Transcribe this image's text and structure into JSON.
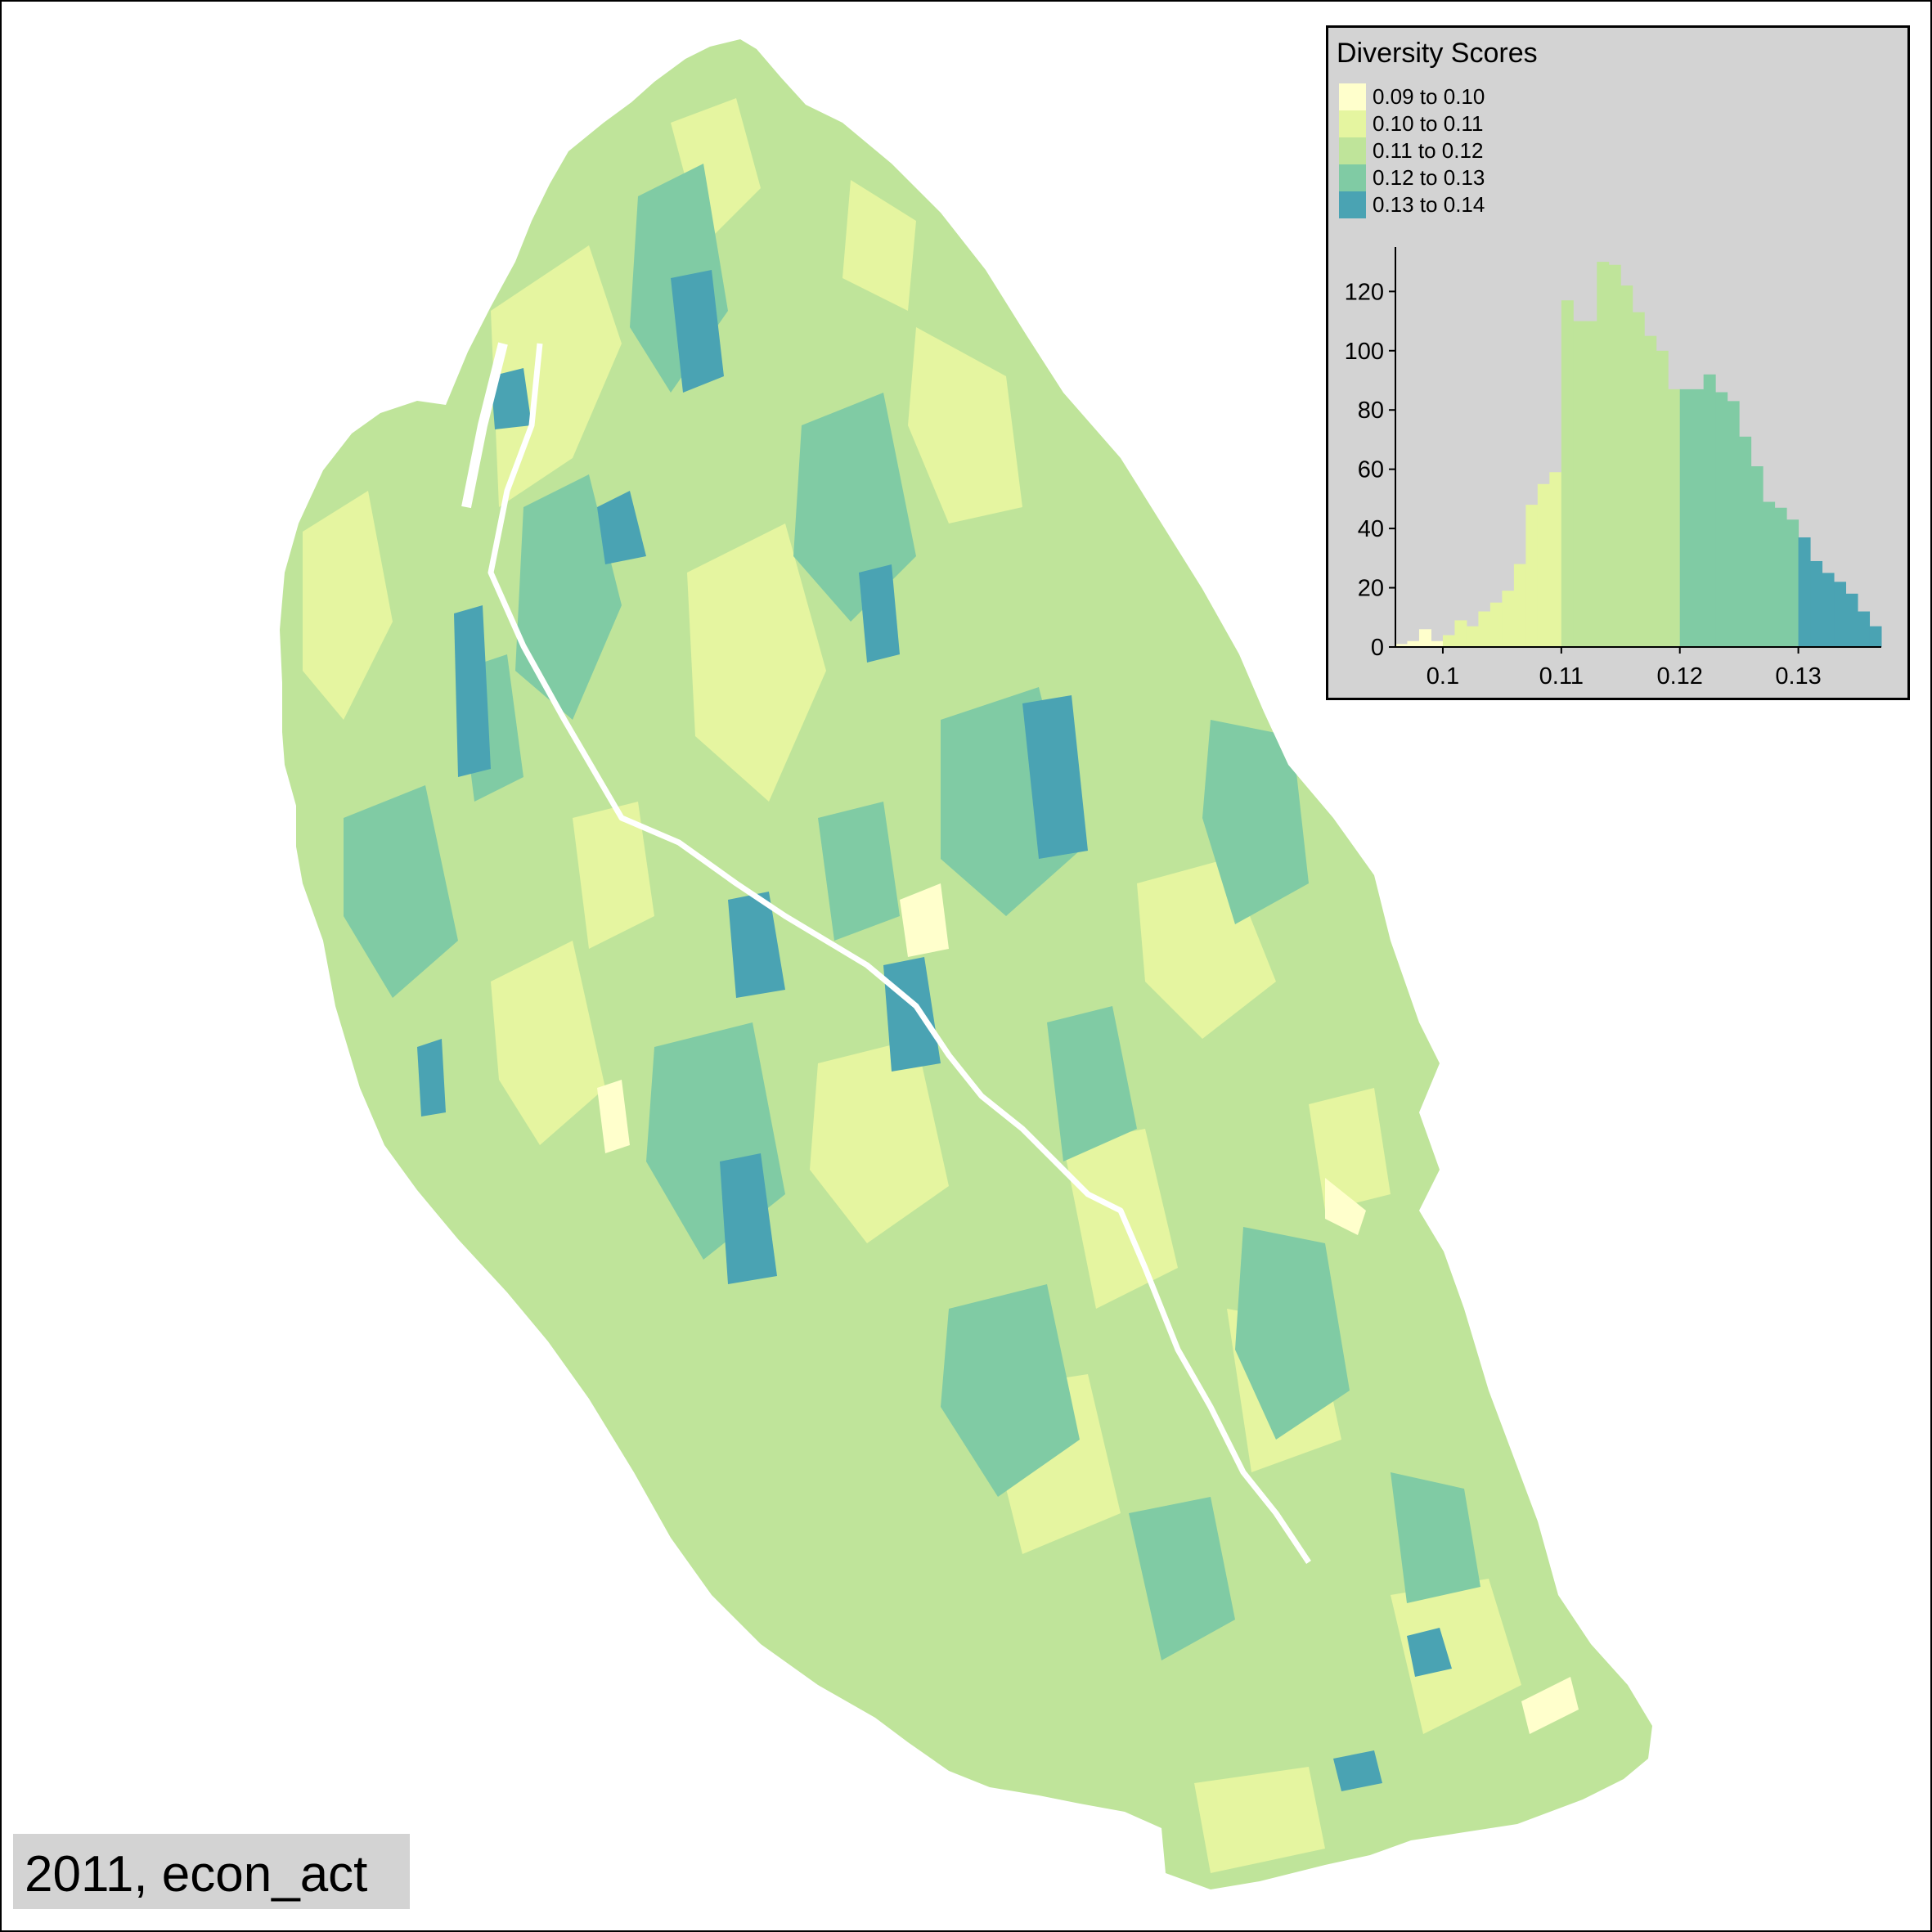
{
  "legend": {
    "title": "Diversity Scores",
    "classes": [
      {
        "label": "0.09 to 0.10",
        "color": "#ffffcc"
      },
      {
        "label": "0.10 to 0.11",
        "color": "#e5f5a0"
      },
      {
        "label": "0.11 to 0.12",
        "color": "#bfe49a"
      },
      {
        "label": "0.12 to 0.13",
        "color": "#80cba4"
      },
      {
        "label": "0.13 to 0.14",
        "color": "#4aa3b3"
      }
    ]
  },
  "caption": "2011, econ_act",
  "chart_data": {
    "type": "bar",
    "x_ticks": [
      "0.1",
      "0.11",
      "0.12",
      "0.13"
    ],
    "y_ticks": [
      "0",
      "20",
      "40",
      "60",
      "80",
      "100",
      "120"
    ],
    "xlim": [
      0.096,
      0.137
    ],
    "ylim": [
      0,
      135
    ],
    "bin_width": 0.001,
    "bins_start": [
      0.096,
      0.097,
      0.098,
      0.099,
      0.1,
      0.101,
      0.102,
      0.103,
      0.104,
      0.105,
      0.106,
      0.107,
      0.108,
      0.109,
      0.11,
      0.111,
      0.112,
      0.113,
      0.114,
      0.115,
      0.116,
      0.117,
      0.118,
      0.119,
      0.12,
      0.121,
      0.122,
      0.123,
      0.124,
      0.125,
      0.126,
      0.127,
      0.128,
      0.129,
      0.13,
      0.131,
      0.132,
      0.133,
      0.134,
      0.135,
      0.136
    ],
    "counts": [
      1,
      2,
      6,
      2,
      4,
      9,
      7,
      12,
      15,
      19,
      28,
      48,
      55,
      59,
      117,
      110,
      110,
      130,
      129,
      122,
      113,
      105,
      100,
      87,
      87,
      87,
      92,
      86,
      83,
      71,
      61,
      49,
      47,
      43,
      37,
      29,
      25,
      22,
      18,
      12,
      7
    ],
    "bin_classes": [
      0,
      0,
      0,
      0,
      1,
      1,
      1,
      1,
      1,
      1,
      1,
      1,
      1,
      1,
      2,
      2,
      2,
      2,
      2,
      2,
      2,
      2,
      2,
      2,
      3,
      3,
      3,
      3,
      3,
      3,
      3,
      3,
      3,
      3,
      4,
      4,
      4,
      4,
      4,
      4,
      4
    ]
  }
}
